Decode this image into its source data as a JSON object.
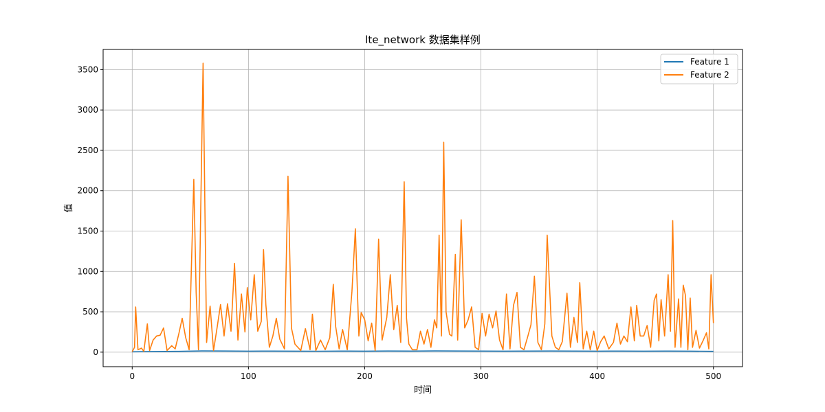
{
  "chart_data": {
    "type": "line",
    "title": "lte_network 数据集样例",
    "xlabel": "时间",
    "ylabel": "值",
    "xlim": [
      -25,
      525
    ],
    "ylim": [
      -180,
      3750
    ],
    "xticks": [
      0,
      100,
      200,
      300,
      400,
      500
    ],
    "yticks": [
      0,
      500,
      1000,
      1500,
      2000,
      2500,
      3000,
      3500
    ],
    "grid": true,
    "legend_position": "top-right",
    "series": [
      {
        "name": "Feature 1",
        "color": "#1f77b4",
        "points": [
          [
            0,
            5
          ],
          [
            20,
            8
          ],
          [
            40,
            10
          ],
          [
            60,
            15
          ],
          [
            80,
            14
          ],
          [
            100,
            12
          ],
          [
            120,
            13
          ],
          [
            140,
            12
          ],
          [
            160,
            11
          ],
          [
            180,
            13
          ],
          [
            200,
            12
          ],
          [
            220,
            14
          ],
          [
            240,
            13
          ],
          [
            260,
            15
          ],
          [
            280,
            14
          ],
          [
            300,
            13
          ],
          [
            320,
            12
          ],
          [
            340,
            13
          ],
          [
            360,
            14
          ],
          [
            380,
            13
          ],
          [
            400,
            12
          ],
          [
            420,
            13
          ],
          [
            440,
            12
          ],
          [
            460,
            13
          ],
          [
            480,
            12
          ],
          [
            500,
            10
          ]
        ]
      },
      {
        "name": "Feature 2",
        "color": "#ff7f0e",
        "points": [
          [
            0,
            5
          ],
          [
            2,
            60
          ],
          [
            3,
            560
          ],
          [
            5,
            30
          ],
          [
            8,
            50
          ],
          [
            10,
            10
          ],
          [
            13,
            350
          ],
          [
            15,
            20
          ],
          [
            18,
            150
          ],
          [
            21,
            200
          ],
          [
            24,
            210
          ],
          [
            27,
            300
          ],
          [
            30,
            20
          ],
          [
            34,
            80
          ],
          [
            37,
            40
          ],
          [
            40,
            220
          ],
          [
            43,
            420
          ],
          [
            46,
            180
          ],
          [
            49,
            30
          ],
          [
            53,
            2140
          ],
          [
            55,
            740
          ],
          [
            57,
            30
          ],
          [
            61,
            3580
          ],
          [
            64,
            120
          ],
          [
            67,
            570
          ],
          [
            70,
            20
          ],
          [
            73,
            300
          ],
          [
            76,
            590
          ],
          [
            79,
            200
          ],
          [
            82,
            600
          ],
          [
            85,
            260
          ],
          [
            88,
            1100
          ],
          [
            91,
            150
          ],
          [
            94,
            720
          ],
          [
            97,
            250
          ],
          [
            99,
            800
          ],
          [
            102,
            400
          ],
          [
            105,
            960
          ],
          [
            108,
            260
          ],
          [
            111,
            380
          ],
          [
            113,
            1270
          ],
          [
            115,
            590
          ],
          [
            118,
            60
          ],
          [
            121,
            200
          ],
          [
            124,
            420
          ],
          [
            127,
            160
          ],
          [
            131,
            40
          ],
          [
            134,
            2180
          ],
          [
            137,
            300
          ],
          [
            140,
            100
          ],
          [
            145,
            20
          ],
          [
            149,
            290
          ],
          [
            153,
            30
          ],
          [
            155,
            470
          ],
          [
            158,
            20
          ],
          [
            162,
            150
          ],
          [
            166,
            30
          ],
          [
            170,
            180
          ],
          [
            173,
            840
          ],
          [
            175,
            320
          ],
          [
            178,
            40
          ],
          [
            181,
            280
          ],
          [
            185,
            30
          ],
          [
            189,
            750
          ],
          [
            192,
            1530
          ],
          [
            195,
            200
          ],
          [
            197,
            490
          ],
          [
            200,
            400
          ],
          [
            203,
            140
          ],
          [
            206,
            360
          ],
          [
            209,
            20
          ],
          [
            212,
            1400
          ],
          [
            215,
            150
          ],
          [
            219,
            430
          ],
          [
            222,
            960
          ],
          [
            225,
            280
          ],
          [
            228,
            580
          ],
          [
            231,
            120
          ],
          [
            234,
            2110
          ],
          [
            236,
            420
          ],
          [
            238,
            100
          ],
          [
            241,
            30
          ],
          [
            245,
            30
          ],
          [
            248,
            260
          ],
          [
            251,
            100
          ],
          [
            254,
            280
          ],
          [
            257,
            60
          ],
          [
            260,
            400
          ],
          [
            262,
            300
          ],
          [
            264,
            1450
          ],
          [
            266,
            200
          ],
          [
            268,
            2600
          ],
          [
            270,
            500
          ],
          [
            273,
            220
          ],
          [
            275,
            200
          ],
          [
            278,
            1210
          ],
          [
            280,
            150
          ],
          [
            283,
            1640
          ],
          [
            286,
            300
          ],
          [
            289,
            400
          ],
          [
            292,
            560
          ],
          [
            295,
            60
          ],
          [
            298,
            30
          ],
          [
            301,
            480
          ],
          [
            304,
            200
          ],
          [
            307,
            470
          ],
          [
            310,
            300
          ],
          [
            313,
            510
          ],
          [
            316,
            150
          ],
          [
            319,
            30
          ],
          [
            322,
            720
          ],
          [
            325,
            40
          ],
          [
            328,
            580
          ],
          [
            331,
            740
          ],
          [
            334,
            60
          ],
          [
            337,
            30
          ],
          [
            340,
            180
          ],
          [
            343,
            340
          ],
          [
            346,
            940
          ],
          [
            349,
            120
          ],
          [
            352,
            30
          ],
          [
            355,
            350
          ],
          [
            357,
            1450
          ],
          [
            359,
            820
          ],
          [
            361,
            200
          ],
          [
            364,
            60
          ],
          [
            367,
            30
          ],
          [
            370,
            130
          ],
          [
            374,
            730
          ],
          [
            377,
            60
          ],
          [
            380,
            430
          ],
          [
            383,
            120
          ],
          [
            385,
            860
          ],
          [
            388,
            40
          ],
          [
            391,
            260
          ],
          [
            394,
            30
          ],
          [
            397,
            260
          ],
          [
            400,
            20
          ],
          [
            403,
            130
          ],
          [
            406,
            200
          ],
          [
            410,
            40
          ],
          [
            414,
            120
          ],
          [
            417,
            360
          ],
          [
            420,
            100
          ],
          [
            423,
            200
          ],
          [
            426,
            130
          ],
          [
            429,
            560
          ],
          [
            432,
            140
          ],
          [
            434,
            580
          ],
          [
            437,
            200
          ],
          [
            440,
            200
          ],
          [
            443,
            330
          ],
          [
            446,
            60
          ],
          [
            449,
            640
          ],
          [
            451,
            720
          ],
          [
            453,
            140
          ],
          [
            455,
            650
          ],
          [
            458,
            200
          ],
          [
            461,
            960
          ],
          [
            463,
            260
          ],
          [
            465,
            1630
          ],
          [
            467,
            60
          ],
          [
            470,
            660
          ],
          [
            472,
            60
          ],
          [
            474,
            830
          ],
          [
            476,
            700
          ],
          [
            478,
            30
          ],
          [
            480,
            670
          ],
          [
            482,
            60
          ],
          [
            485,
            270
          ],
          [
            488,
            50
          ],
          [
            491,
            140
          ],
          [
            494,
            240
          ],
          [
            496,
            40
          ],
          [
            498,
            960
          ],
          [
            500,
            360
          ]
        ]
      }
    ]
  }
}
